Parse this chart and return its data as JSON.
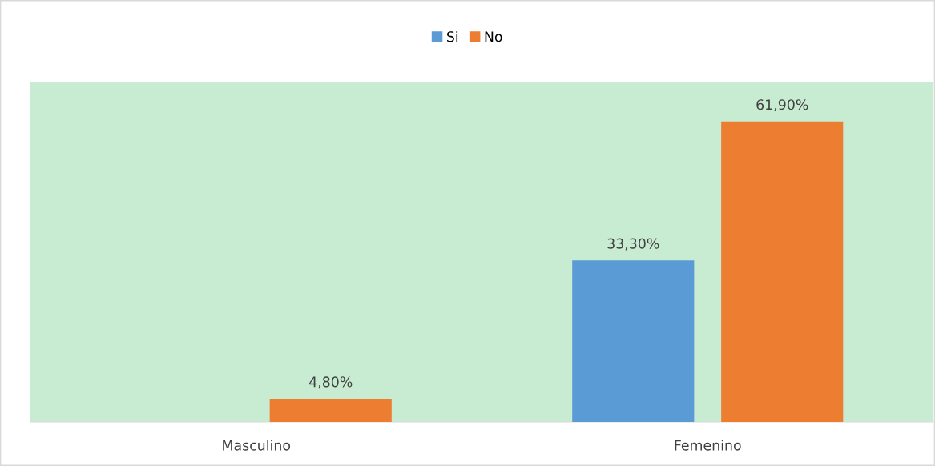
{
  "chart_data": {
    "type": "bar",
    "categories": [
      "Masculino",
      "Femenino"
    ],
    "series": [
      {
        "name": "Si",
        "color": "#5b9bd5",
        "values": [
          null,
          33.3
        ],
        "value_labels": [
          null,
          "33,30%"
        ]
      },
      {
        "name": "No",
        "color": "#ed7d31",
        "values": [
          4.8,
          61.9
        ],
        "value_labels": [
          "4,80%",
          "61,90%"
        ]
      }
    ],
    "legend": "top",
    "grid": false
  }
}
